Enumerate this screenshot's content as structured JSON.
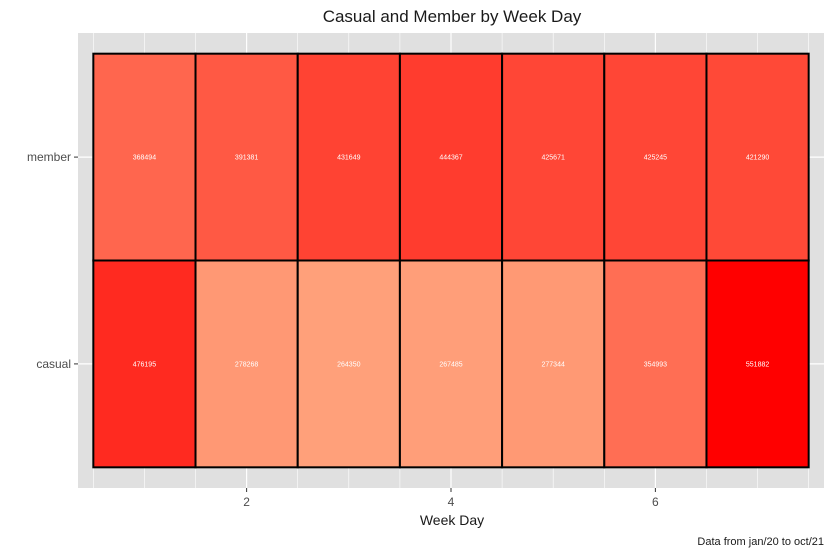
{
  "chart_data": {
    "type": "heatmap",
    "title": "Casual and Member by Week Day",
    "xlabel": "Week Day",
    "ylabel": "",
    "caption": "Data from jan/20 to oct/21",
    "x": [
      1,
      2,
      3,
      4,
      5,
      6,
      7
    ],
    "x_ticks": [
      2,
      4,
      6
    ],
    "xlim": [
      0.35,
      7.65
    ],
    "categories": [
      "casual",
      "member"
    ],
    "values": {
      "member": [
        368494,
        391381,
        431649,
        444367,
        425671,
        425245,
        421290
      ],
      "casual": [
        476195,
        278268,
        264350,
        267485,
        277344,
        354993,
        551882
      ]
    },
    "color_scale": {
      "low": "#ffa07a",
      "high": "#ff0000"
    },
    "grid": true,
    "legend": "none"
  }
}
